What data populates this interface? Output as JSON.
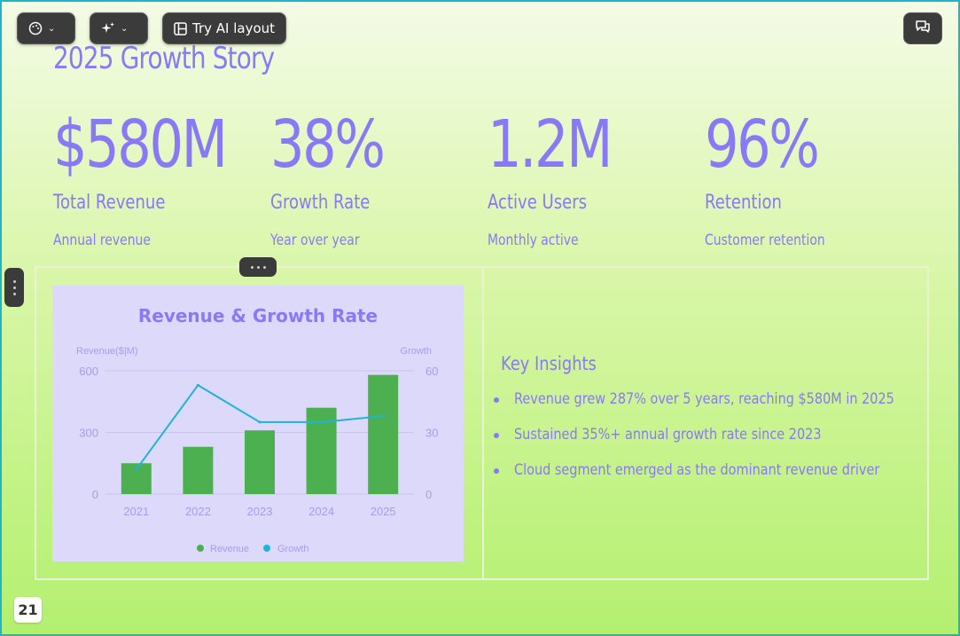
{
  "toolbar": {
    "theme_icon": "palette-icon",
    "magic_icon": "sparkles-icon",
    "layout_label": "Try AI layout",
    "layout_icon": "layout-icon",
    "comment_icon": "comment-icon"
  },
  "slide": {
    "title": "2025 Growth Story",
    "page_number": "21",
    "stats": [
      {
        "value": "$580M",
        "label": "Total Revenue",
        "sub": "Annual revenue"
      },
      {
        "value": "38%",
        "label": "Growth Rate",
        "sub": "Year over year"
      },
      {
        "value": "1.2M",
        "label": "Active Users",
        "sub": "Monthly active"
      },
      {
        "value": "96%",
        "label": "Retention",
        "sub": "Customer retention"
      }
    ],
    "insights": {
      "title": "Key Insights",
      "items": [
        "Revenue grew 287% over 5 years, reaching $580M in 2025",
        "Sustained 35%+ annual growth rate since 2023",
        "Cloud segment emerged as the dominant revenue driver"
      ]
    }
  },
  "colors": {
    "accent": "#8a79f5",
    "bar": "#4caf50",
    "line": "#1fb4d8"
  },
  "chart_data": {
    "type": "bar",
    "title": "Revenue & Growth Rate",
    "categories": [
      "2021",
      "2022",
      "2023",
      "2024",
      "2025"
    ],
    "ylabel_left": "Revenue($|M)",
    "ylabel_right": "Growth",
    "ylim_left": [
      0,
      600
    ],
    "ylim_right": [
      0,
      60
    ],
    "yticks_left": [
      "0",
      "300",
      "600"
    ],
    "yticks_right": [
      "0",
      "30",
      "60"
    ],
    "series": [
      {
        "name": "Revenue",
        "type": "bar",
        "axis": "left",
        "values": [
          150,
          230,
          310,
          420,
          580
        ]
      },
      {
        "name": "Growth",
        "type": "line",
        "axis": "right",
        "values": [
          12,
          53,
          35,
          35,
          38
        ]
      }
    ],
    "legend": "bottom"
  }
}
